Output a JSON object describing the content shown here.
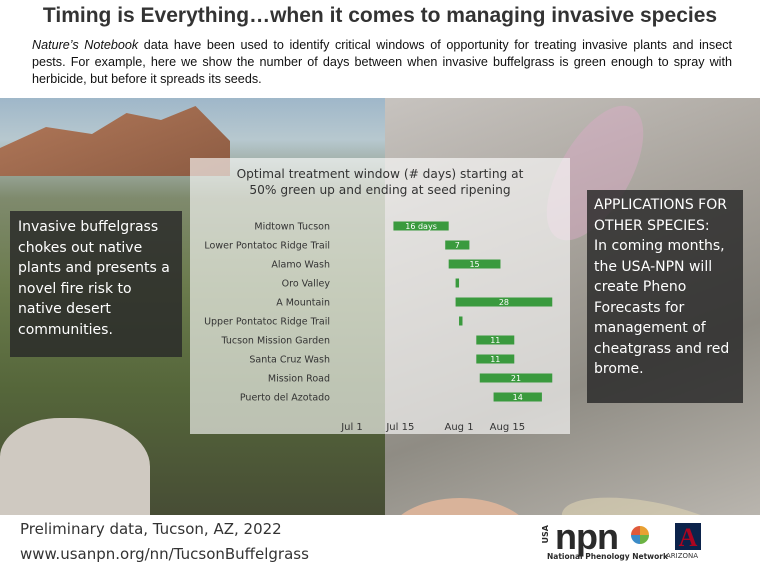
{
  "header": {
    "title": "Timing is Everything…when it comes to managing invasive species",
    "intro_italic": "Nature’s Notebook",
    "intro_rest": " data have been used to identify critical windows of opportunity for treating invasive plants and insect pests. For example, here we show the number of days between when invasive buffelgrass is green enough to spray with herbicide, but before it spreads its seeds."
  },
  "left_panel": {
    "text": "Invasive buffelgrass chokes out native plants and presents a novel fire risk to native desert communities."
  },
  "right_panel": {
    "heading": "APPLICATIONS FOR OTHER SPECIES:",
    "text": "In coming months, the USA-NPN will create Pheno Forecasts for management of cheatgrass and red brome."
  },
  "footer": {
    "line1": "Preliminary data, Tucson, AZ, 2022",
    "line2": "www.usanpn.org/nn/TucsonBuffelgrass"
  },
  "logos": {
    "npn": "npn",
    "usa": "USA",
    "npn_sub": "National Phenology Network",
    "arizona_word": "ARIZONA",
    "arizona_mark": "A"
  },
  "colors": {
    "bar": "#3a9a3e",
    "bar_label": "#ffffff"
  },
  "chart_data": {
    "type": "bar",
    "orientation": "horizontal-range",
    "title_line1": "Optimal treatment window (# days) starting at",
    "title_line2": "50% green up and ending at seed ripening",
    "x_ticks": [
      "Jul 1",
      "Jul 15",
      "Aug 1",
      "Aug 15"
    ],
    "x_tick_days": [
      182,
      196,
      213,
      227
    ],
    "xlim_day_of_year": [
      182,
      235
    ],
    "series": [
      {
        "category": "Midtown Tucson",
        "start_day": 194,
        "days": 16,
        "label": "16 days"
      },
      {
        "category": "Lower Pontatoc Ridge Trail",
        "start_day": 209,
        "days": 7,
        "label": "7"
      },
      {
        "category": "Alamo Wash",
        "start_day": 210,
        "days": 15,
        "label": "15"
      },
      {
        "category": "Oro Valley",
        "start_day": 212,
        "days": 1,
        "label": "1"
      },
      {
        "category": "A Mountain",
        "start_day": 212,
        "days": 28,
        "label": "28"
      },
      {
        "category": "Upper Pontatoc Ridge Trail",
        "start_day": 213,
        "days": 1,
        "label": "1"
      },
      {
        "category": "Tucson Mission Garden",
        "start_day": 218,
        "days": 11,
        "label": "11"
      },
      {
        "category": "Santa Cruz Wash",
        "start_day": 218,
        "days": 11,
        "label": "11"
      },
      {
        "category": "Mission Road",
        "start_day": 219,
        "days": 21,
        "label": "21"
      },
      {
        "category": "Puerto del Azotado",
        "start_day": 223,
        "days": 14,
        "label": "14"
      }
    ]
  }
}
